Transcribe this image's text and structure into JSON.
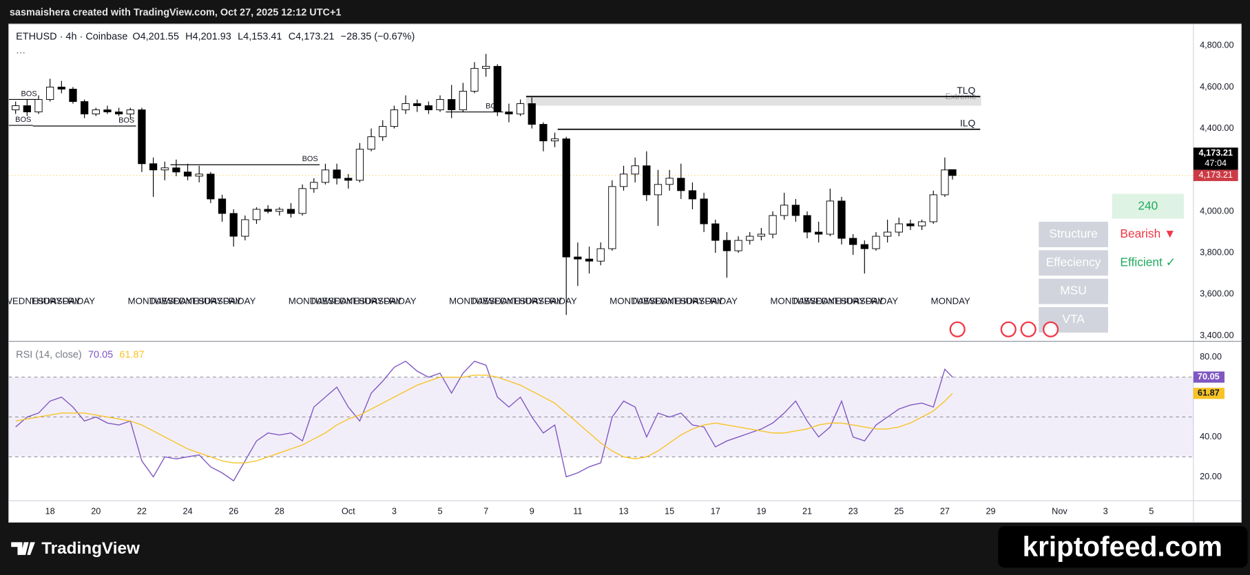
{
  "top_bar": "sasmaishera created with TradingView.com, Oct 27, 2025 12:12 UTC+1",
  "header": {
    "symbol": "ETHUSD · 4h · Coinbase",
    "more": "···",
    "ohlc": [
      {
        "key": "O",
        "value": "4,201.55"
      },
      {
        "key": "H",
        "value": "4,201.93"
      },
      {
        "key": "L",
        "value": "4,153.41"
      },
      {
        "key": "C",
        "value": "4,173.21"
      }
    ],
    "change": "−28.35 (−0.67%)"
  },
  "footer": {
    "brand": "TradingView",
    "watermark": "kriptofeed.com"
  },
  "chart_data": {
    "type": "candlestick",
    "xlim": [
      "2025-09-16T04:50",
      "2025-11-06T20:00"
    ],
    "xticks": [
      {
        "value": "2025-09-18T00:00",
        "label": "18"
      },
      {
        "value": "2025-09-20T00:00",
        "label": "20"
      },
      {
        "value": "2025-09-22T00:00",
        "label": "22"
      },
      {
        "value": "2025-09-24T00:00",
        "label": "24"
      },
      {
        "value": "2025-09-26T00:00",
        "label": "26"
      },
      {
        "value": "2025-09-28T00:00",
        "label": "28"
      },
      {
        "value": "2025-10-01T00:00",
        "label": "Oct"
      },
      {
        "value": "2025-10-03T00:00",
        "label": "3"
      },
      {
        "value": "2025-10-05T00:00",
        "label": "5"
      },
      {
        "value": "2025-10-07T00:00",
        "label": "7"
      },
      {
        "value": "2025-10-09T00:00",
        "label": "9"
      },
      {
        "value": "2025-10-11T00:00",
        "label": "11"
      },
      {
        "value": "2025-10-13T00:00",
        "label": "13"
      },
      {
        "value": "2025-10-15T00:00",
        "label": "15"
      },
      {
        "value": "2025-10-17T00:00",
        "label": "17"
      },
      {
        "value": "2025-10-19T00:00",
        "label": "19"
      },
      {
        "value": "2025-10-21T00:00",
        "label": "21"
      },
      {
        "value": "2025-10-23T00:00",
        "label": "23"
      },
      {
        "value": "2025-10-25T00:00",
        "label": "25"
      },
      {
        "value": "2025-10-27T00:00",
        "label": "27"
      },
      {
        "value": "2025-10-29T00:00",
        "label": "29"
      },
      {
        "value": "2025-11-01T00:00",
        "label": "Nov"
      },
      {
        "value": "2025-11-03T00:00",
        "label": "3"
      },
      {
        "value": "2025-11-05T00:00",
        "label": "5"
      }
    ],
    "ylim": [
      3373,
      4904
    ],
    "yticks": [
      {
        "value": 3400,
        "label": "3,400.00"
      },
      {
        "value": 3600,
        "label": "3,600.00"
      },
      {
        "value": 3800,
        "label": "3,800.00"
      },
      {
        "value": 4000,
        "label": "4,000.00"
      },
      {
        "value": 4200,
        "label": "4,200.00"
      },
      {
        "value": 4400,
        "label": "4,400.00"
      },
      {
        "value": 4600,
        "label": "4,600.00"
      },
      {
        "value": 4800,
        "label": "4,800.00"
      }
    ],
    "up_color": "#ffffff",
    "down_color": "#000000",
    "wick_color": "#000000",
    "x": [
      "2025-09-16T12:00",
      "2025-09-17T00:00",
      "2025-09-17T12:00",
      "2025-09-18T00:00",
      "2025-09-18T12:00",
      "2025-09-19T00:00",
      "2025-09-19T12:00",
      "2025-09-20T00:00",
      "2025-09-20T12:00",
      "2025-09-21T00:00",
      "2025-09-21T12:00",
      "2025-09-22T00:00",
      "2025-09-22T12:00",
      "2025-09-23T00:00",
      "2025-09-23T12:00",
      "2025-09-24T00:00",
      "2025-09-24T12:00",
      "2025-09-25T00:00",
      "2025-09-25T12:00",
      "2025-09-26T00:00",
      "2025-09-26T12:00",
      "2025-09-27T00:00",
      "2025-09-27T12:00",
      "2025-09-28T00:00",
      "2025-09-28T12:00",
      "2025-09-29T00:00",
      "2025-09-29T12:00",
      "2025-09-30T00:00",
      "2025-09-30T12:00",
      "2025-10-01T00:00",
      "2025-10-01T12:00",
      "2025-10-02T00:00",
      "2025-10-02T12:00",
      "2025-10-03T00:00",
      "2025-10-03T12:00",
      "2025-10-04T00:00",
      "2025-10-04T12:00",
      "2025-10-05T00:00",
      "2025-10-05T12:00",
      "2025-10-06T00:00",
      "2025-10-06T12:00",
      "2025-10-07T00:00",
      "2025-10-07T12:00",
      "2025-10-08T00:00",
      "2025-10-08T12:00",
      "2025-10-09T00:00",
      "2025-10-09T12:00",
      "2025-10-10T00:00",
      "2025-10-10T12:00",
      "2025-10-11T00:00",
      "2025-10-11T12:00",
      "2025-10-12T00:00",
      "2025-10-12T12:00",
      "2025-10-13T00:00",
      "2025-10-13T12:00",
      "2025-10-14T00:00",
      "2025-10-14T12:00",
      "2025-10-15T00:00",
      "2025-10-15T12:00",
      "2025-10-16T00:00",
      "2025-10-16T12:00",
      "2025-10-17T00:00",
      "2025-10-17T12:00",
      "2025-10-18T00:00",
      "2025-10-18T12:00",
      "2025-10-19T00:00",
      "2025-10-19T12:00",
      "2025-10-20T00:00",
      "2025-10-20T12:00",
      "2025-10-21T00:00",
      "2025-10-21T12:00",
      "2025-10-22T00:00",
      "2025-10-22T12:00",
      "2025-10-23T00:00",
      "2025-10-23T12:00",
      "2025-10-24T00:00",
      "2025-10-24T12:00",
      "2025-10-25T00:00",
      "2025-10-25T12:00",
      "2025-10-26T00:00",
      "2025-10-26T12:00",
      "2025-10-27T00:00",
      "2025-10-27T08:00"
    ],
    "open": [
      4490,
      4510,
      4480,
      4540,
      4600,
      4590,
      4530,
      4470,
      4490,
      4480,
      4470,
      4490,
      4230,
      4200,
      4210,
      4190,
      4170,
      4180,
      4060,
      3990,
      3880,
      3960,
      4010,
      4000,
      4010,
      3990,
      4110,
      4140,
      4200,
      4160,
      4150,
      4300,
      4360,
      4410,
      4490,
      4520,
      4510,
      4490,
      4540,
      4490,
      4580,
      4690,
      4700,
      4480,
      4470,
      4520,
      4420,
      4340,
      4350,
      3780,
      3770,
      3760,
      3820,
      4120,
      4180,
      4220,
      4080,
      4130,
      4160,
      4100,
      4060,
      3940,
      3860,
      3810,
      3860,
      3880,
      3890,
      3980,
      4030,
      3980,
      3900,
      3890,
      4050,
      3870,
      3840,
      3820,
      3880,
      3900,
      3940,
      3930,
      3950,
      4080,
      4201.55
    ],
    "high": [
      4530,
      4540,
      4560,
      4640,
      4630,
      4600,
      4540,
      4500,
      4510,
      4500,
      4500,
      4500,
      4260,
      4240,
      4250,
      4230,
      4220,
      4190,
      4080,
      4010,
      3980,
      4020,
      4030,
      4020,
      4040,
      4130,
      4160,
      4230,
      4230,
      4180,
      4330,
      4400,
      4440,
      4510,
      4560,
      4540,
      4530,
      4560,
      4610,
      4620,
      4720,
      4760,
      4710,
      4520,
      4540,
      4550,
      4430,
      4380,
      4360,
      3850,
      3830,
      3850,
      4150,
      4220,
      4260,
      4290,
      4200,
      4200,
      4230,
      4140,
      4090,
      3960,
      3900,
      3880,
      3900,
      3920,
      4000,
      4090,
      4060,
      4000,
      3950,
      4110,
      4070,
      3890,
      3860,
      3900,
      3960,
      3970,
      3960,
      3960,
      4100,
      4260,
      4201.93
    ],
    "low": [
      4470,
      4460,
      4470,
      4530,
      4570,
      4520,
      4450,
      4460,
      4470,
      4460,
      4450,
      4190,
      4070,
      4150,
      4170,
      4150,
      4140,
      4040,
      3950,
      3830,
      3860,
      3940,
      3990,
      3980,
      3970,
      3980,
      4090,
      4130,
      4130,
      4110,
      4140,
      4290,
      4340,
      4400,
      4470,
      4480,
      4470,
      4480,
      4450,
      4480,
      4570,
      4650,
      4460,
      4430,
      4460,
      4400,
      4290,
      4310,
      3500,
      3640,
      3700,
      3740,
      3810,
      4100,
      4140,
      4050,
      3930,
      4100,
      4060,
      4010,
      3900,
      3800,
      3680,
      3800,
      3840,
      3860,
      3870,
      3960,
      3950,
      3870,
      3850,
      3880,
      3840,
      3790,
      3700,
      3810,
      3850,
      3880,
      3910,
      3910,
      3940,
      4070,
      4153.41
    ],
    "close": [
      4510,
      4480,
      4540,
      4600,
      4590,
      4530,
      4470,
      4490,
      4480,
      4470,
      4490,
      4230,
      4200,
      4210,
      4190,
      4170,
      4180,
      4060,
      3990,
      3880,
      3960,
      4010,
      4000,
      4010,
      3990,
      4110,
      4140,
      4200,
      4160,
      4150,
      4300,
      4360,
      4410,
      4490,
      4520,
      4510,
      4490,
      4540,
      4490,
      4580,
      4690,
      4700,
      4480,
      4470,
      4520,
      4420,
      4340,
      4350,
      3780,
      3770,
      3760,
      3820,
      4120,
      4180,
      4220,
      4080,
      4130,
      4160,
      4100,
      4060,
      3940,
      3860,
      3810,
      3860,
      3880,
      3890,
      3980,
      4030,
      3980,
      3900,
      3890,
      4050,
      3870,
      3840,
      3820,
      3880,
      3900,
      3940,
      3930,
      3950,
      4080,
      4200,
      4173.21
    ],
    "last_price": {
      "value": 4173.21,
      "label": "4,173.21",
      "countdown": "47:04",
      "line_color": "#f2c94c",
      "tag_color": "#cc3b45"
    },
    "levels": [
      {
        "label": "BOS",
        "price": 4540,
        "x0": "2025-09-16T04:50",
        "x1": "2025-09-17T12:00"
      },
      {
        "label": "BOS",
        "price": 4415,
        "x0": "2025-09-16T04:50",
        "x1": "2025-09-17T06:00"
      },
      {
        "label": "BOS",
        "price": 4412,
        "x0": "2025-09-17T06:00",
        "x1": "2025-09-21T18:00"
      },
      {
        "label": "BOS",
        "price": 4225,
        "x0": "2025-09-23T06:00",
        "x1": "2025-09-29T18:00"
      },
      {
        "label": "BOS",
        "price": 4480,
        "x0": "2025-10-05T06:00",
        "x1": "2025-10-07T18:00"
      },
      {
        "label": "TLQ",
        "price": 4554,
        "x0": "2025-10-08T18:00",
        "x1": "2025-10-28T13:00"
      },
      {
        "label": "ILQ",
        "price": 4396,
        "x0": "2025-10-10T03:00",
        "x1": "2025-10-28T13:00"
      }
    ],
    "zone": {
      "label": "Extreme",
      "low": 4510,
      "high": 4560,
      "x0": "2025-10-08T18:00",
      "x1": "2025-10-28T14:00",
      "color": "#d9d9d9"
    },
    "day_labels": [
      {
        "x": "2025-09-17T06:00",
        "label": "WEDNESDAY"
      },
      {
        "x": "2025-09-18T06:00",
        "label": "THURSDAY"
      },
      {
        "x": "2025-09-19T06:00",
        "label": "FRIDAY"
      },
      {
        "x": "2025-09-22T06:00",
        "label": "MONDAY"
      },
      {
        "x": "2025-09-23T06:00",
        "label": "TUESDAY"
      },
      {
        "x": "2025-09-24T06:00",
        "label": "WEDNESDAY"
      },
      {
        "x": "2025-09-25T06:00",
        "label": "THURSDAY"
      },
      {
        "x": "2025-09-26T06:00",
        "label": "FRIDAY"
      },
      {
        "x": "2025-09-29T06:00",
        "label": "MONDAY"
      },
      {
        "x": "2025-09-30T06:00",
        "label": "TUESDAY"
      },
      {
        "x": "2025-10-01T06:00",
        "label": "WEDNESDAY"
      },
      {
        "x": "2025-10-02T06:00",
        "label": "THURSDAY"
      },
      {
        "x": "2025-10-03T06:00",
        "label": "FRIDAY"
      },
      {
        "x": "2025-10-06T06:00",
        "label": "MONDAY"
      },
      {
        "x": "2025-10-07T06:00",
        "label": "TUESDAY"
      },
      {
        "x": "2025-10-08T06:00",
        "label": "WEDNESDAY"
      },
      {
        "x": "2025-10-09T06:00",
        "label": "THURSDAY"
      },
      {
        "x": "2025-10-10T06:00",
        "label": "FRIDAY"
      },
      {
        "x": "2025-10-13T06:00",
        "label": "MONDAY"
      },
      {
        "x": "2025-10-14T06:00",
        "label": "TUESDAY"
      },
      {
        "x": "2025-10-15T06:00",
        "label": "WEDNESDAY"
      },
      {
        "x": "2025-10-16T06:00",
        "label": "THURSDAY"
      },
      {
        "x": "2025-10-17T06:00",
        "label": "FRIDAY"
      },
      {
        "x": "2025-10-20T06:00",
        "label": "MONDAY"
      },
      {
        "x": "2025-10-21T06:00",
        "label": "TUESDAY"
      },
      {
        "x": "2025-10-22T06:00",
        "label": "WEDNESDAY"
      },
      {
        "x": "2025-10-23T06:00",
        "label": "THURSDAY"
      },
      {
        "x": "2025-10-24T06:00",
        "label": "FRIDAY"
      },
      {
        "x": "2025-10-27T06:00",
        "label": "MONDAY"
      }
    ],
    "panel": {
      "timeframe": "240",
      "rows": [
        {
          "name": "Structure",
          "status": "Bearish ▼",
          "color": "#f23645"
        },
        {
          "name": "Effeciency",
          "status": "Efficient ✓",
          "color": "#22ab60"
        },
        {
          "name": "MSU"
        },
        {
          "name": "VTA"
        }
      ]
    },
    "rsi": {
      "title": "RSI (14, close)",
      "ylim": [
        8,
        88
      ],
      "yticks": [
        {
          "value": 20,
          "label": "20.00"
        },
        {
          "value": 40,
          "label": "40.00"
        },
        {
          "value": 80,
          "label": "80.00"
        }
      ],
      "levels": [
        30,
        50,
        70
      ],
      "band_color": "#7e57c2",
      "series": [
        {
          "color": "#7e57c2",
          "values": [
            45,
            50,
            52,
            58,
            60,
            55,
            48,
            50,
            47,
            46,
            48,
            28,
            20,
            30,
            29,
            30,
            31,
            25,
            22,
            18,
            28,
            38,
            42,
            41,
            42,
            38,
            55,
            60,
            65,
            55,
            48,
            62,
            68,
            75,
            78,
            73,
            70,
            72,
            62,
            72,
            78,
            76,
            60,
            55,
            60,
            50,
            42,
            46,
            20,
            22,
            25,
            27,
            50,
            58,
            55,
            40,
            52,
            50,
            52,
            46,
            45,
            35,
            38,
            40,
            42,
            44,
            47,
            52,
            58,
            48,
            40,
            45,
            58,
            40,
            38,
            46,
            50,
            54,
            56,
            57,
            55,
            74,
            70.05
          ]
        },
        {
          "color": "#f7c325",
          "values": [
            48,
            49,
            50,
            51,
            52,
            52,
            52,
            51,
            50,
            49,
            48,
            46,
            43,
            40,
            37,
            34,
            32,
            30,
            28,
            27,
            27,
            28,
            30,
            32,
            34,
            36,
            39,
            42,
            46,
            49,
            51,
            54,
            57,
            60,
            63,
            66,
            68,
            70,
            70,
            70,
            71,
            71,
            70,
            68,
            66,
            63,
            60,
            57,
            52,
            47,
            42,
            37,
            33,
            30,
            29,
            30,
            33,
            37,
            41,
            44,
            46,
            47,
            46,
            45,
            44,
            43,
            42,
            42,
            43,
            44,
            46,
            47,
            47,
            46,
            45,
            44,
            44,
            45,
            47,
            50,
            53,
            58,
            61.87
          ]
        }
      ]
    }
  }
}
